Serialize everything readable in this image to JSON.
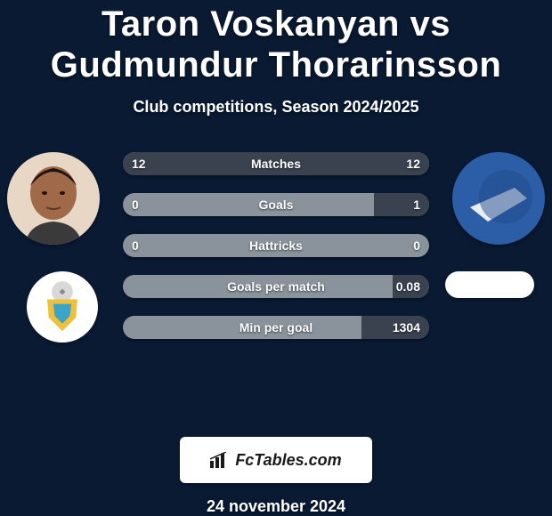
{
  "background_color": "#0a1a33",
  "text_color": "#ffffff",
  "title": "Taron Voskanyan vs Gudmundur Thorarinsson",
  "subtitle": "Club competitions, Season 2024/2025",
  "date": "24 november 2024",
  "logo_text": "FcTables.com",
  "logo_box_bg": "#ffffff",
  "logo_text_color": "#1a1a1a",
  "bar_track_color": "#8a929c",
  "bar_left_fill_color": "#3a4250",
  "bar_right_fill_color": "#3a4250",
  "bar_label_color": "#ffffff",
  "bars": [
    {
      "label": "Matches",
      "left": "12",
      "right": "12",
      "left_pct": 50,
      "right_pct": 50
    },
    {
      "label": "Goals",
      "left": "0",
      "right": "1",
      "left_pct": 0,
      "right_pct": 18
    },
    {
      "label": "Hattricks",
      "left": "0",
      "right": "0",
      "left_pct": 0,
      "right_pct": 0
    },
    {
      "label": "Goals per match",
      "left": "",
      "right": "0.08",
      "left_pct": 0,
      "right_pct": 12
    },
    {
      "label": "Min per goal",
      "left": "",
      "right": "1304",
      "left_pct": 0,
      "right_pct": 22
    }
  ],
  "player_left": {
    "avatar_bg": "#e8d7c5",
    "avatar_face": "#a06a48",
    "avatar_hair": "#1a1310"
  },
  "player_right": {
    "avatar_bg": "#2c5ea8",
    "avatar_accent": "#ffffff"
  },
  "club_left": {
    "bg": "#ffffff",
    "shield_outer": "#f0c038",
    "shield_inner": "#3aa5c8",
    "ball": "#d8d8d8"
  },
  "club_right": {
    "bg": "#ffffff"
  }
}
